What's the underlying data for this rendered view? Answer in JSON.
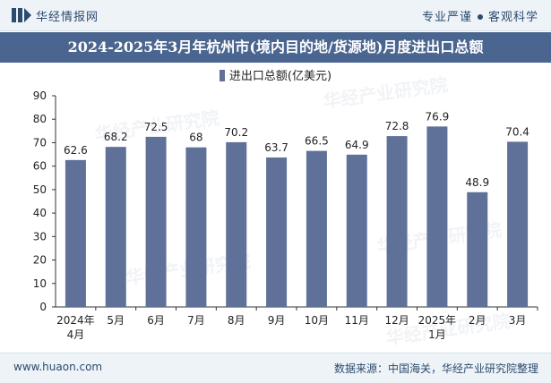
{
  "header": {
    "brand": "华经情报网",
    "slogan_left": "专业严谨",
    "slogan_right": "客观科学"
  },
  "title": "2024-2025年3月年杭州市(境内目的地/货源地)月度进出口总额",
  "footer": {
    "site": "www.huaon.com",
    "source": "数据来源：中国海关，华经产业研究院整理"
  },
  "watermark": "华经产业研究院",
  "colors": {
    "bar": "#5f7198",
    "title_bg": "#4a6590",
    "brand": "#2c4a6e"
  },
  "chart_data": {
    "type": "bar",
    "title": "2024-2025年3月年杭州市(境内目的地/货源地)月度进出口总额",
    "legend": "进出口总额(亿美元)",
    "categories": [
      "2024年\n4月",
      "5月",
      "6月",
      "7月",
      "8月",
      "9月",
      "10月",
      "11月",
      "12月",
      "2025年\n1月",
      "2月",
      "3月"
    ],
    "series": [
      {
        "name": "进出口总额(亿美元)",
        "values": [
          62.6,
          68.2,
          72.5,
          68,
          70.2,
          63.7,
          66.5,
          64.9,
          72.8,
          76.9,
          48.9,
          70.4
        ]
      }
    ],
    "value_labels": [
      "62.6",
      "68.2",
      "72.5",
      "68",
      "70.2",
      "63.7",
      "66.5",
      "64.9",
      "72.8",
      "76.9",
      "48.9",
      "70.4"
    ],
    "yticks": [
      "0",
      "10",
      "20",
      "30",
      "40",
      "50",
      "60",
      "70",
      "80",
      "90"
    ],
    "ylim": [
      0,
      90
    ],
    "xlabel": "",
    "ylabel": ""
  }
}
